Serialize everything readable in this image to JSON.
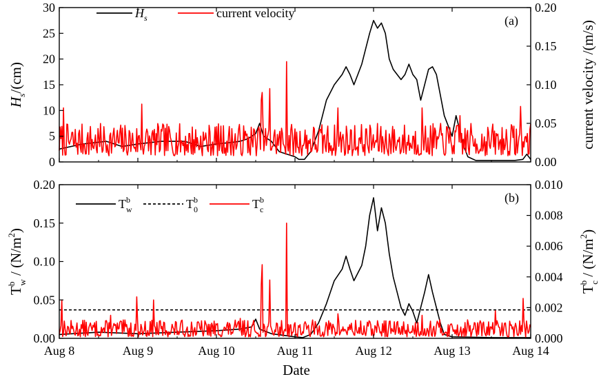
{
  "figure": {
    "xlabel": "Date"
  },
  "chart_data": [
    {
      "type": "line",
      "panel_label": "(a)",
      "x_ticks": [
        "Aug 8",
        "Aug 9",
        "Aug 10",
        "Aug 11",
        "Aug 12",
        "Aug 13",
        "Aug 14"
      ],
      "xlim_days": [
        0,
        6
      ],
      "ylabel_left": {
        "main": "H",
        "sub": "s",
        "rest": "/(cm)"
      },
      "ylabel_right": "current velocity /(m/s)",
      "ylim_left": [
        0,
        30
      ],
      "ylim_right": [
        0,
        0.2
      ],
      "yticks_left": [
        "0",
        "5",
        "10",
        "15",
        "20",
        "25",
        "30"
      ],
      "yticks_right": [
        "0.00",
        "0.05",
        "0.10",
        "0.15",
        "0.20"
      ],
      "legend": [
        {
          "main": "H",
          "sub": "s",
          "color": "#000000",
          "dash": false
        },
        {
          "main": "current velocity",
          "sub": "",
          "color": "#ff0000",
          "dash": false
        }
      ],
      "series": [
        {
          "axis": "left",
          "color": "#000000",
          "points": [
            [
              0,
              2.5
            ],
            [
              0.3,
              3.5
            ],
            [
              0.6,
              4
            ],
            [
              0.8,
              3
            ],
            [
              1.0,
              3.5
            ],
            [
              1.3,
              4
            ],
            [
              1.6,
              4
            ],
            [
              1.8,
              3
            ],
            [
              2.0,
              3.5
            ],
            [
              2.2,
              3.8
            ],
            [
              2.3,
              4
            ],
            [
              2.4,
              4.5
            ],
            [
              2.5,
              5.5
            ],
            [
              2.55,
              7.5
            ],
            [
              2.6,
              5
            ],
            [
              2.7,
              4
            ],
            [
              2.8,
              2
            ],
            [
              3.0,
              1
            ],
            [
              3.05,
              0.5
            ],
            [
              3.12,
              0.5
            ],
            [
              3.2,
              2
            ],
            [
              3.3,
              6
            ],
            [
              3.4,
              12
            ],
            [
              3.5,
              15
            ],
            [
              3.6,
              17
            ],
            [
              3.65,
              18.5
            ],
            [
              3.7,
              17
            ],
            [
              3.75,
              15
            ],
            [
              3.8,
              17
            ],
            [
              3.85,
              19
            ],
            [
              3.9,
              22
            ],
            [
              3.95,
              25
            ],
            [
              4.0,
              27.5
            ],
            [
              4.05,
              26
            ],
            [
              4.1,
              27
            ],
            [
              4.15,
              25
            ],
            [
              4.2,
              20
            ],
            [
              4.25,
              18
            ],
            [
              4.3,
              17
            ],
            [
              4.35,
              16
            ],
            [
              4.4,
              17
            ],
            [
              4.45,
              19
            ],
            [
              4.5,
              17
            ],
            [
              4.55,
              16
            ],
            [
              4.6,
              12
            ],
            [
              4.7,
              18
            ],
            [
              4.75,
              18.5
            ],
            [
              4.8,
              17
            ],
            [
              4.85,
              13
            ],
            [
              4.9,
              9
            ],
            [
              4.95,
              7
            ],
            [
              5.0,
              5
            ],
            [
              5.05,
              9
            ],
            [
              5.1,
              6
            ],
            [
              5.15,
              3
            ],
            [
              5.2,
              1
            ],
            [
              5.3,
              0.3
            ],
            [
              5.6,
              0.3
            ],
            [
              5.8,
              0.3
            ],
            [
              5.9,
              0.5
            ],
            [
              5.95,
              1.5
            ],
            [
              6.0,
              0.5
            ]
          ]
        },
        {
          "axis": "right",
          "color": "#ff0000",
          "style": "noise",
          "seed": 7,
          "base": 0.008,
          "spread": 0.042,
          "peaks": [
            [
              0.05,
              0.07
            ],
            [
              1.05,
              0.075
            ],
            [
              2.57,
              0.08
            ],
            [
              2.58,
              0.09
            ],
            [
              2.68,
              0.095
            ],
            [
              2.89,
              0.13
            ],
            [
              3.55,
              0.07
            ],
            [
              4.62,
              0.07
            ],
            [
              5.87,
              0.072
            ],
            [
              5.1,
              0.06
            ]
          ]
        }
      ]
    },
    {
      "type": "line",
      "panel_label": "(b)",
      "x_ticks": [
        "Aug 8",
        "Aug 9",
        "Aug 10",
        "Aug 11",
        "Aug 12",
        "Aug 13",
        "Aug 14"
      ],
      "xlim_days": [
        0,
        6
      ],
      "ylabel_left": {
        "main": "T",
        "sup": "b",
        "sub": "w",
        "rest": " / (N/m",
        "rest_sup": "2",
        "close": ")"
      },
      "ylabel_right": {
        "main": "T",
        "sup": "b",
        "sub": "c",
        "rest": " / (N/m",
        "rest_sup": "2",
        "close": ")"
      },
      "ylim_left": [
        0,
        0.2
      ],
      "ylim_right": [
        0,
        0.01
      ],
      "yticks_left": [
        "0.00",
        "0.05",
        "0.10",
        "0.15",
        "0.20"
      ],
      "yticks_right": [
        "0.000",
        "0.002",
        "0.004",
        "0.006",
        "0.008",
        "0.010"
      ],
      "legend": [
        {
          "main": "T",
          "sup": "b",
          "sub": "w",
          "color": "#000000",
          "dash": false
        },
        {
          "main": "T",
          "sup": "b",
          "sub": "0",
          "color": "#000000",
          "dash": true
        },
        {
          "main": "T",
          "sup": "b",
          "sub": "c",
          "color": "#ff0000",
          "dash": false
        }
      ],
      "series": [
        {
          "axis": "left",
          "color": "#000000",
          "points": [
            [
              0,
              0.005
            ],
            [
              0.5,
              0.008
            ],
            [
              1.0,
              0.006
            ],
            [
              1.5,
              0.008
            ],
            [
              2.0,
              0.01
            ],
            [
              2.3,
              0.012
            ],
            [
              2.45,
              0.015
            ],
            [
              2.5,
              0.025
            ],
            [
              2.55,
              0.012
            ],
            [
              2.7,
              0.006
            ],
            [
              3.0,
              0.002
            ],
            [
              3.1,
              0.001
            ],
            [
              3.2,
              0.005
            ],
            [
              3.3,
              0.02
            ],
            [
              3.4,
              0.045
            ],
            [
              3.5,
              0.075
            ],
            [
              3.6,
              0.09
            ],
            [
              3.65,
              0.107
            ],
            [
              3.7,
              0.09
            ],
            [
              3.75,
              0.075
            ],
            [
              3.8,
              0.085
            ],
            [
              3.85,
              0.095
            ],
            [
              3.9,
              0.12
            ],
            [
              3.95,
              0.16
            ],
            [
              4.0,
              0.183
            ],
            [
              4.05,
              0.14
            ],
            [
              4.1,
              0.17
            ],
            [
              4.15,
              0.15
            ],
            [
              4.2,
              0.11
            ],
            [
              4.25,
              0.08
            ],
            [
              4.3,
              0.06
            ],
            [
              4.35,
              0.04
            ],
            [
              4.4,
              0.03
            ],
            [
              4.45,
              0.045
            ],
            [
              4.5,
              0.035
            ],
            [
              4.55,
              0.02
            ],
            [
              4.6,
              0.04
            ],
            [
              4.65,
              0.06
            ],
            [
              4.7,
              0.083
            ],
            [
              4.75,
              0.06
            ],
            [
              4.8,
              0.04
            ],
            [
              4.85,
              0.02
            ],
            [
              4.9,
              0.005
            ],
            [
              5.0,
              0.002
            ],
            [
              5.5,
              0.001
            ],
            [
              6.0,
              0.001
            ]
          ]
        },
        {
          "axis": "left",
          "color": "#000000",
          "dash": true,
          "points": [
            [
              0,
              0.037
            ],
            [
              6,
              0.037
            ]
          ]
        },
        {
          "axis": "right",
          "color": "#ff0000",
          "style": "noise",
          "seed": 13,
          "base": 0.0001,
          "spread": 0.0011,
          "peaks": [
            [
              0.03,
              0.0025
            ],
            [
              0.65,
              0.0015
            ],
            [
              0.99,
              0.0027
            ],
            [
              1.2,
              0.0025
            ],
            [
              2.3,
              0.0013
            ],
            [
              2.57,
              0.0035
            ],
            [
              2.58,
              0.0048
            ],
            [
              2.68,
              0.0038
            ],
            [
              2.89,
              0.0075
            ],
            [
              3.55,
              0.0016
            ],
            [
              4.62,
              0.0015
            ],
            [
              5.9,
              0.0026
            ],
            [
              5.55,
              0.0018
            ]
          ]
        }
      ]
    }
  ]
}
